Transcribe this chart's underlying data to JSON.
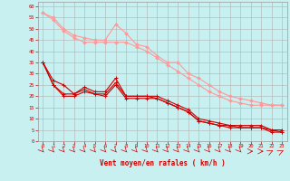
{
  "x": [
    0,
    1,
    2,
    3,
    4,
    5,
    6,
    7,
    8,
    9,
    10,
    11,
    12,
    13,
    14,
    15,
    16,
    17,
    18,
    19,
    20,
    21,
    22,
    23
  ],
  "line_pink1": [
    57,
    55,
    50,
    47,
    46,
    45,
    45,
    52,
    48,
    43,
    42,
    38,
    35,
    35,
    30,
    28,
    25,
    22,
    20,
    19,
    18,
    17,
    16,
    16
  ],
  "line_pink2": [
    57,
    54,
    49,
    46,
    44,
    44,
    44,
    44,
    44,
    42,
    40,
    37,
    34,
    31,
    28,
    25,
    22,
    20,
    18,
    17,
    16,
    16,
    16,
    16
  ],
  "line_red1": [
    35,
    27,
    25,
    21,
    24,
    22,
    22,
    28,
    20,
    20,
    20,
    20,
    18,
    16,
    14,
    10,
    9,
    8,
    7,
    7,
    7,
    7,
    5,
    5
  ],
  "line_red2": [
    35,
    25,
    21,
    21,
    23,
    21,
    21,
    26,
    20,
    20,
    20,
    19,
    17,
    15,
    13,
    9,
    8,
    7,
    7,
    6,
    6,
    6,
    5,
    4
  ],
  "line_red3": [
    35,
    25,
    20,
    20,
    22,
    21,
    20,
    25,
    19,
    19,
    19,
    19,
    17,
    15,
    13,
    9,
    8,
    7,
    6,
    6,
    6,
    6,
    4,
    4
  ],
  "bg_color": "#c8f0f0",
  "grid_color": "#b0b0b0",
  "pink_color": "#ff9999",
  "red_color": "#cc0000",
  "xlabel": "Vent moyen/en rafales ( km/h )",
  "ylim": [
    0,
    62
  ],
  "xlim": [
    -0.5,
    23.5
  ],
  "yticks": [
    0,
    5,
    10,
    15,
    20,
    25,
    30,
    35,
    40,
    45,
    50,
    55,
    60
  ],
  "xticks": [
    0,
    1,
    2,
    3,
    4,
    5,
    6,
    7,
    8,
    9,
    10,
    11,
    12,
    13,
    14,
    15,
    16,
    17,
    18,
    19,
    20,
    21,
    22,
    23
  ]
}
